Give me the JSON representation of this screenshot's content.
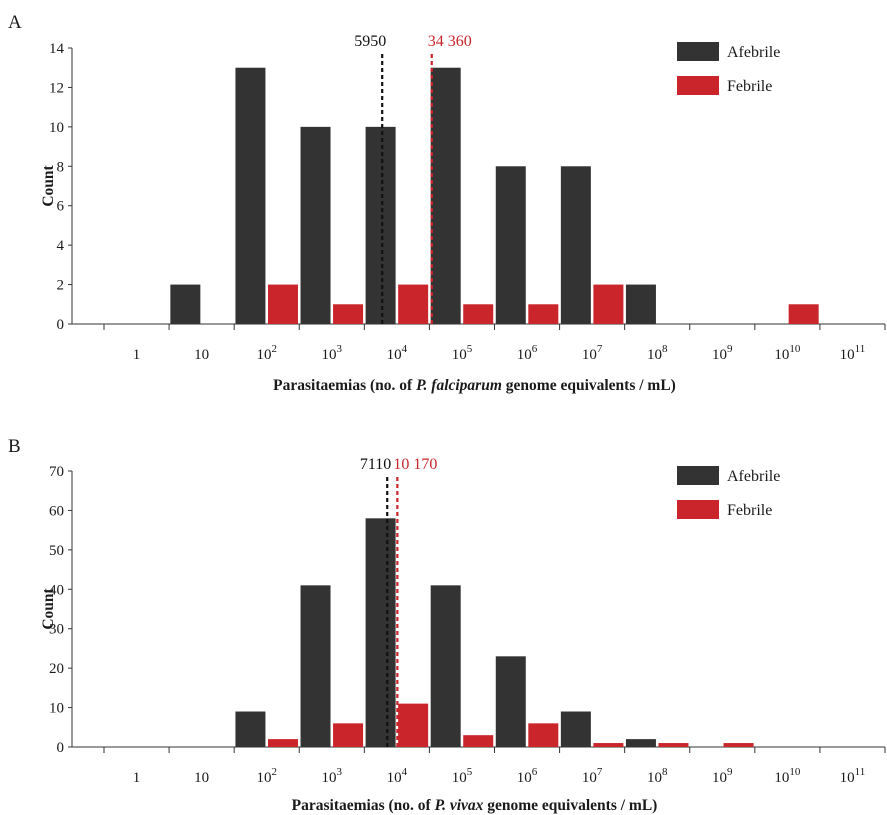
{
  "chart_data": [
    {
      "type": "bar",
      "panel": "A",
      "xlabel_prefix": "Parasitaemias (no. of ",
      "xlabel_species": "P. falciparum",
      "xlabel_suffix": " genome equivalents / mL)",
      "ylabel": "Count",
      "ylim": [
        0,
        14
      ],
      "yticks": [
        0,
        2,
        4,
        6,
        8,
        10,
        12,
        14
      ],
      "x_ticks": [
        {
          "base": "1",
          "exp": ""
        },
        {
          "base": "10",
          "exp": ""
        },
        {
          "base": "10",
          "exp": "2"
        },
        {
          "base": "10",
          "exp": "3"
        },
        {
          "base": "10",
          "exp": "4"
        },
        {
          "base": "10",
          "exp": "5"
        },
        {
          "base": "10",
          "exp": "6"
        },
        {
          "base": "10",
          "exp": "7"
        },
        {
          "base": "10",
          "exp": "8"
        },
        {
          "base": "10",
          "exp": "9"
        },
        {
          "base": "10",
          "exp": "10"
        },
        {
          "base": "10",
          "exp": "11"
        }
      ],
      "series": [
        {
          "name": "Afebrile",
          "color": "#333333",
          "values": [
            0,
            2,
            13,
            10,
            10,
            13,
            8,
            8,
            2,
            0,
            0,
            0
          ]
        },
        {
          "name": "Febrile",
          "color": "#c9252b",
          "values": [
            0,
            0,
            2,
            1,
            2,
            1,
            1,
            2,
            0,
            0,
            1,
            0
          ]
        }
      ],
      "medians": [
        {
          "label": "5950",
          "value": 5950,
          "color": "#111111"
        },
        {
          "label": "34 360",
          "value": 34360,
          "color": "#c9252b"
        }
      ],
      "legend_position": "top-right"
    },
    {
      "type": "bar",
      "panel": "B",
      "xlabel_prefix": "Parasitaemias (no. of ",
      "xlabel_species": "P. vivax",
      "xlabel_suffix": " genome equivalents / mL)",
      "ylabel": "Count",
      "ylim": [
        0,
        70
      ],
      "yticks": [
        0,
        10,
        20,
        30,
        40,
        50,
        60,
        70
      ],
      "x_ticks": [
        {
          "base": "1",
          "exp": ""
        },
        {
          "base": "10",
          "exp": ""
        },
        {
          "base": "10",
          "exp": "2"
        },
        {
          "base": "10",
          "exp": "3"
        },
        {
          "base": "10",
          "exp": "4"
        },
        {
          "base": "10",
          "exp": "5"
        },
        {
          "base": "10",
          "exp": "6"
        },
        {
          "base": "10",
          "exp": "7"
        },
        {
          "base": "10",
          "exp": "8"
        },
        {
          "base": "10",
          "exp": "9"
        },
        {
          "base": "10",
          "exp": "10"
        },
        {
          "base": "10",
          "exp": "11"
        }
      ],
      "series": [
        {
          "name": "Afebrile",
          "color": "#333333",
          "values": [
            0,
            0,
            9,
            41,
            58,
            41,
            23,
            9,
            2,
            0,
            0,
            0
          ]
        },
        {
          "name": "Febrile",
          "color": "#c9252b",
          "values": [
            0,
            0,
            2,
            6,
            11,
            3,
            6,
            1,
            1,
            1,
            0,
            0
          ]
        }
      ],
      "medians": [
        {
          "label": "7110",
          "value": 7110,
          "color": "#111111"
        },
        {
          "label": "10 170",
          "value": 10170,
          "color": "#c9252b"
        }
      ],
      "legend_position": "top-right"
    }
  ]
}
